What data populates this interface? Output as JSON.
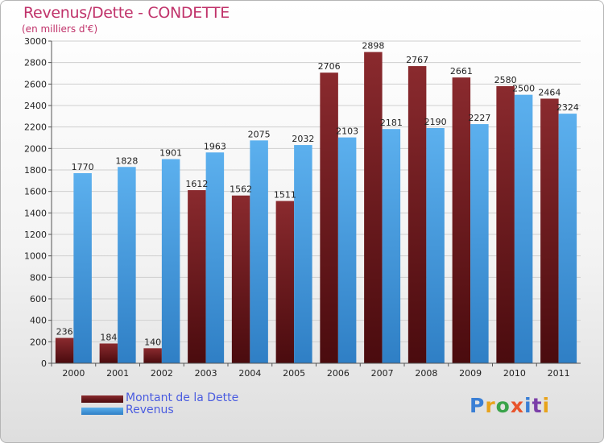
{
  "title": "Revenus/Dette - CONDETTE",
  "subtitle": "(en milliers d'€)",
  "logo": {
    "text": "Proxiti",
    "colors": [
      "#3a7fd5",
      "#e8a31c",
      "#3aa34a",
      "#e8542c",
      "#3a7fd5",
      "#7b3fa8",
      "#e8a31c"
    ]
  },
  "colors": {
    "dette": "#7b1c20",
    "dette_dark": "#4a0b0e",
    "revenus": "#52a6e8",
    "revenus_dark": "#2f7fc5",
    "title": "#c0326a",
    "legend_text": "#4a5ce0"
  },
  "chart_data": {
    "type": "bar",
    "categories": [
      "2000",
      "2001",
      "2002",
      "2003",
      "2004",
      "2005",
      "2006",
      "2007",
      "2008",
      "2009",
      "2010",
      "2011"
    ],
    "series": [
      {
        "name": "Montant de la Dette",
        "values": [
          236,
          184,
          140,
          1612,
          1562,
          1511,
          2706,
          2898,
          2767,
          2661,
          2580,
          2464
        ],
        "labels": [
          "236",
          "184",
          "140",
          "1612",
          "1562",
          "1511",
          "2706",
          "2898",
          "2767",
          "2661",
          "2580",
          "2464"
        ]
      },
      {
        "name": "Revenus",
        "values": [
          1770,
          1828,
          1901,
          1963,
          2075,
          2032,
          2103,
          2181,
          2190,
          2227,
          2500,
          2324
        ],
        "labels": [
          "1770",
          "1828",
          "1901",
          "1963",
          "2075",
          "2032",
          "2103",
          "2181",
          "2190",
          "2227",
          "2500",
          "2324"
        ]
      }
    ],
    "yticks": [
      "0",
      "200",
      "400",
      "600",
      "800",
      "1000",
      "1200",
      "1400",
      "1600",
      "1800",
      "2000",
      "2200",
      "2400",
      "2600",
      "2800",
      "3000"
    ],
    "ylim": [
      0,
      3000
    ],
    "grid": true,
    "legend_position": "bottom-left"
  }
}
